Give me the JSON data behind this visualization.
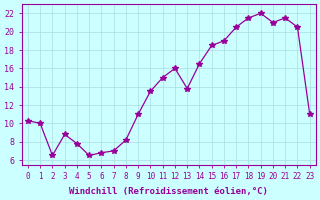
{
  "x": [
    0,
    1,
    2,
    3,
    4,
    5,
    6,
    7,
    8,
    9,
    10,
    11,
    12,
    13,
    14,
    15,
    16,
    17,
    18,
    19,
    20,
    21,
    22,
    23
  ],
  "y": [
    10.3,
    10.0,
    6.5,
    8.8,
    7.8,
    6.5,
    6.8,
    7.0,
    8.2,
    11.0,
    13.5,
    15.0,
    16.0,
    13.8,
    16.5,
    18.5,
    19.0,
    20.5,
    21.5,
    22.0,
    21.0,
    21.5,
    20.5,
    11.0
  ],
  "line_color": "#990099",
  "marker": "*",
  "marker_size": 4,
  "bg_color": "#ccffff",
  "grid_color": "#aadddd",
  "xlabel": "Windchill (Refroidissement éolien,°C)",
  "xlabel_color": "#990099",
  "ylabel_ticks": [
    6,
    8,
    10,
    12,
    14,
    16,
    18,
    20,
    22
  ],
  "xlim": [
    -0.5,
    23.5
  ],
  "ylim": [
    5.5,
    23.0
  ],
  "tick_color": "#990099",
  "spine_color": "#990099"
}
